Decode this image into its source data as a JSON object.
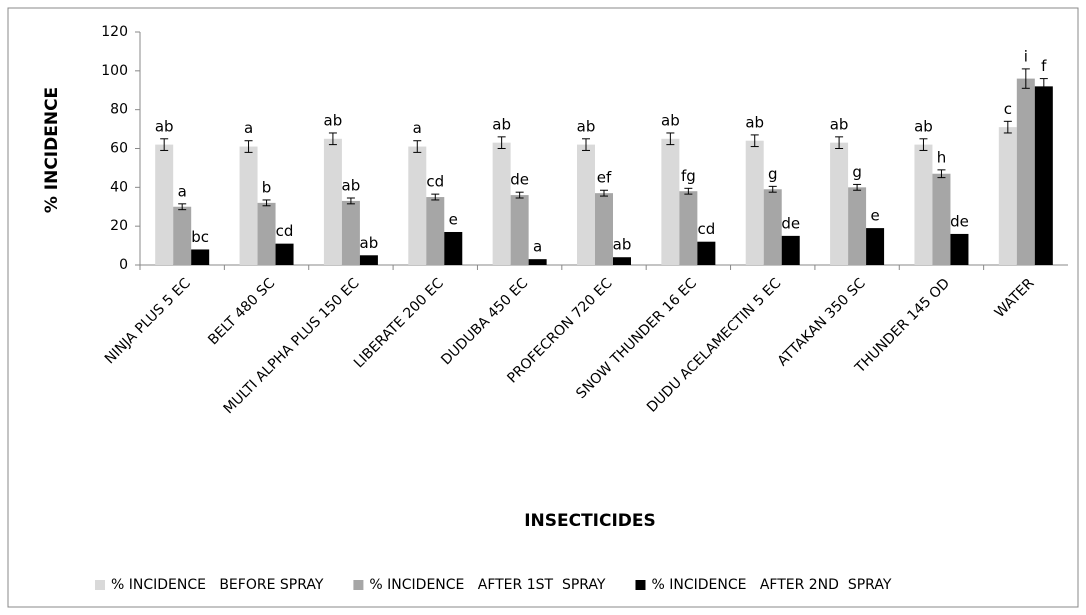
{
  "chart_data": {
    "type": "bar",
    "x_label": "INSECTICIDES",
    "y_label": "% INCIDENCE",
    "categories": [
      "NINJA PLUS 5 EC",
      "BELT 480 SC",
      "MULTI ALPHA PLUS 150 EC",
      "LIBERATE 200 EC",
      "DUDUBA 450 EC",
      "PROFECRON 720 EC",
      "SNOW THUNDER  16 EC",
      "DUDU ACELAMECTIN 5 EC",
      "ATTAKAN 350 SC",
      "THUNDER  145 OD",
      "WATER"
    ],
    "series": [
      {
        "name": "% INCIDENCE   BEFORE SPRAY",
        "color": "#d9d9d9",
        "values": [
          62,
          61,
          65,
          61,
          63,
          62,
          65,
          64,
          63,
          62,
          71
        ],
        "errors": [
          3,
          3,
          3,
          3,
          3,
          3,
          3,
          3,
          3,
          3,
          3
        ],
        "labels": [
          "ab",
          "a",
          "ab",
          "a",
          "ab",
          "ab",
          "ab",
          "ab",
          "ab",
          "ab",
          "c"
        ]
      },
      {
        "name": "% INCIDENCE   AFTER 1ST  SPRAY",
        "color": "#a6a6a6",
        "values": [
          30,
          32,
          33,
          35,
          36,
          37,
          38,
          39,
          40,
          47,
          96
        ],
        "errors": [
          1.5,
          1.5,
          1.5,
          1.5,
          1.5,
          1.5,
          1.5,
          1.5,
          1.5,
          2,
          5
        ],
        "labels": [
          "a",
          "b",
          "ab",
          "cd",
          "de",
          "ef",
          "fg",
          "g",
          "g",
          "h",
          "i"
        ]
      },
      {
        "name": "% INCIDENCE   AFTER 2ND  SPRAY",
        "color": "#000000",
        "values": [
          8,
          11,
          5,
          17,
          3,
          4,
          12,
          15,
          19,
          16,
          92
        ],
        "errors": [
          null,
          null,
          null,
          null,
          null,
          null,
          null,
          null,
          null,
          null,
          4
        ],
        "labels": [
          "bc",
          "cd",
          "ab",
          "e",
          "a",
          "ab",
          "cd",
          "de",
          "e",
          "de",
          "f"
        ]
      }
    ],
    "ylim": [
      0,
      120
    ],
    "yticks": [
      0,
      20,
      40,
      60,
      80,
      100,
      120
    ],
    "grid": false,
    "legend": "bottom"
  }
}
